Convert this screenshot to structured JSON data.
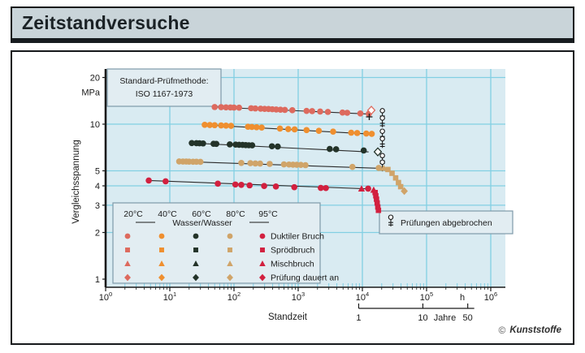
{
  "page": {
    "title": "Zeitstandversuche"
  },
  "logo": {
    "symbol": "©",
    "text": "Kunststoffe"
  },
  "chart_data": {
    "type": "scatter",
    "title": "",
    "xlabel": "Standzeit",
    "x_unit": "h",
    "ylabel": "Vergleichsspannung",
    "y_unit": "MPa",
    "x_log_range": [
      0,
      6
    ],
    "x_tick_exponents": [
      0,
      1,
      2,
      3,
      4,
      5,
      6
    ],
    "y_ticks": [
      20,
      10,
      5,
      4,
      3,
      2,
      1
    ],
    "grid_y_values": [
      20,
      10,
      5,
      4,
      3,
      2
    ],
    "grid": true,
    "plot_bg": "#d9ebf2",
    "grid_color": "#82cfe3",
    "box_bg": "#e2edf2",
    "box_border": "#7f9aa9",
    "info_box": {
      "line1": "Standard-Prüfmethode:",
      "line2": "ISO 1167-1973"
    },
    "abort_box": {
      "label": "Prüfungen abgebrochen"
    },
    "years_axis": {
      "labels": [
        "1",
        "10",
        "50"
      ],
      "years": [
        1,
        10,
        50
      ],
      "word": "Jahre",
      "hours_per_year": 8760
    },
    "legend": {
      "temps": [
        "20°C",
        "40°C",
        "60°C",
        "80°C",
        "95°C"
      ],
      "medium": "Wasser/Wasser",
      "colors": [
        "#dd6a5e",
        "#ef8f2f",
        "#233329",
        "#d0a469",
        "#d2203f"
      ],
      "rows": [
        {
          "marker": "circle",
          "label": "Duktiler Bruch"
        },
        {
          "marker": "square",
          "label": "Sprödbruch"
        },
        {
          "marker": "triangle",
          "label": "Mischbruch"
        },
        {
          "marker": "diamond",
          "label": "Prüfung dauert an"
        }
      ]
    },
    "series": [
      {
        "name": "20°C Wasser/Wasser",
        "color": "#dd6a5e",
        "trend": [
          [
            50,
            12.9
          ],
          [
            13800,
            11.6
          ]
        ],
        "markers": [
          {
            "type": "circle",
            "pts": [
              [
                50,
                12.9
              ],
              [
                63,
                12.87
              ],
              [
                75,
                12.84
              ],
              [
                88,
                12.82
              ],
              [
                100,
                12.8
              ],
              [
                120,
                12.77
              ],
              [
                185,
                12.67
              ],
              [
                215,
                12.63
              ],
              [
                260,
                12.58
              ],
              [
                300,
                12.55
              ],
              [
                345,
                12.52
              ],
              [
                395,
                12.48
              ],
              [
                455,
                12.44
              ],
              [
                530,
                12.4
              ],
              [
                620,
                12.36
              ],
              [
                810,
                12.3
              ],
              [
                1350,
                12.18
              ],
              [
                1650,
                12.13
              ],
              [
                2200,
                12.06
              ],
              [
                2900,
                12.0
              ],
              [
                4900,
                11.88
              ],
              [
                5800,
                11.84
              ],
              [
                9300,
                11.73
              ],
              [
                12600,
                11.66
              ]
            ]
          },
          {
            "type": "diamond-open",
            "pts": [
              [
                13800,
                12.3
              ]
            ]
          },
          {
            "type": "plus",
            "pts": [
              [
                12800,
                11.15
              ]
            ]
          }
        ],
        "aborts": [
          [
            20500,
            11.6
          ],
          [
            20500,
            10.4
          ]
        ]
      },
      {
        "name": "40°C Wasser/Wasser",
        "color": "#ef8f2f",
        "trend": [
          [
            35,
            9.9
          ],
          [
            14000,
            8.62
          ]
        ],
        "markers": [
          {
            "type": "circle",
            "pts": [
              [
                35,
                9.9
              ],
              [
                42,
                9.87
              ],
              [
                50,
                9.85
              ],
              [
                63,
                9.81
              ],
              [
                75,
                9.78
              ],
              [
                90,
                9.75
              ],
              [
                165,
                9.62
              ],
              [
                190,
                9.59
              ],
              [
                225,
                9.55
              ],
              [
                270,
                9.51
              ],
              [
                520,
                9.37
              ],
              [
                700,
                9.3
              ],
              [
                880,
                9.25
              ],
              [
                1350,
                9.16
              ],
              [
                2100,
                9.06
              ],
              [
                3500,
                8.95
              ],
              [
                6700,
                8.81
              ],
              [
                8300,
                8.77
              ],
              [
                11500,
                8.7
              ],
              [
                14000,
                8.66
              ]
            ]
          }
        ],
        "aborts": [
          [
            20500,
            8.55
          ],
          [
            20500,
            7.65
          ]
        ]
      },
      {
        "name": "60°C Wasser/Wasser",
        "color": "#233329",
        "trend": [
          [
            22,
            7.55
          ],
          [
            12500,
            6.62
          ]
        ],
        "markers": [
          {
            "type": "circle",
            "pts": [
              [
                22,
                7.55
              ],
              [
                26,
                7.54
              ],
              [
                29,
                7.53
              ],
              [
                33,
                7.51
              ],
              [
                48,
                7.47
              ],
              [
                53,
                7.46
              ],
              [
                86,
                7.4
              ],
              [
                106,
                7.38
              ],
              [
                120,
                7.36
              ],
              [
                136,
                7.35
              ],
              [
                152,
                7.33
              ],
              [
                170,
                7.31
              ],
              [
                192,
                7.3
              ],
              [
                390,
                7.2
              ],
              [
                480,
                7.17
              ],
              [
                3100,
                6.92
              ],
              [
                3900,
                6.89
              ],
              [
                10500,
                6.76
              ]
            ]
          },
          {
            "type": "diamond-open",
            "pts": [
              [
                17400,
                6.63
              ]
            ]
          }
        ],
        "aborts": [
          [
            20500,
            5.95
          ],
          [
            20500,
            5.4
          ]
        ]
      },
      {
        "name": "80°C Wasser/Wasser",
        "color": "#d0a469",
        "trend": [
          [
            14,
            5.75
          ],
          [
            21000,
            5.18
          ]
        ],
        "markers": [
          {
            "type": "circle",
            "pts": [
              [
                14,
                5.75
              ],
              [
                16,
                5.74
              ],
              [
                18,
                5.74
              ],
              [
                20,
                5.73
              ],
              [
                23,
                5.72
              ],
              [
                26,
                5.72
              ],
              [
                30,
                5.71
              ],
              [
                130,
                5.62
              ],
              [
                180,
                5.6
              ],
              [
                215,
                5.58
              ],
              [
                255,
                5.57
              ],
              [
                360,
                5.54
              ],
              [
                600,
                5.5
              ],
              [
                720,
                5.49
              ],
              [
                830,
                5.48
              ],
              [
                950,
                5.47
              ],
              [
                1100,
                5.46
              ],
              [
                1300,
                5.44
              ],
              [
                7000,
                5.3
              ],
              [
                18000,
                5.22
              ]
            ]
          },
          {
            "type": "triangle",
            "pts": [
              [
                21500,
                5.2
              ]
            ]
          },
          {
            "type": "square",
            "pts": [
              [
                25000,
                5.1
              ],
              [
                29000,
                4.82
              ],
              [
                33000,
                4.5
              ],
              [
                36500,
                4.2
              ],
              [
                39500,
                3.95
              ]
            ]
          },
          {
            "type": "diamond",
            "pts": [
              [
                45000,
                3.7
              ]
            ]
          }
        ],
        "aborts": []
      },
      {
        "name": "95°C Wasser/Wasser",
        "color": "#d2203f",
        "trend": [
          [
            4.7,
            4.33
          ],
          [
            13000,
            3.82
          ]
        ],
        "markers": [
          {
            "type": "circle",
            "pts": [
              [
                4.7,
                4.33
              ],
              [
                8.6,
                4.28
              ],
              [
                56,
                4.13
              ],
              [
                105,
                4.08
              ],
              [
                130,
                4.06
              ],
              [
                175,
                4.03
              ],
              [
                295,
                3.99
              ],
              [
                450,
                3.96
              ],
              [
                870,
                3.92
              ],
              [
                2250,
                3.88
              ],
              [
                2700,
                3.87
              ],
              [
                12300,
                3.84
              ]
            ]
          },
          {
            "type": "triangle",
            "pts": [
              [
                9700,
                3.83
              ],
              [
                15000,
                3.76
              ]
            ]
          },
          {
            "type": "square",
            "pts": [
              [
                15800,
                3.62
              ],
              [
                16200,
                3.45
              ],
              [
                16600,
                3.28
              ],
              [
                17000,
                3.1
              ],
              [
                17400,
                2.92
              ],
              [
                17800,
                2.78
              ]
            ]
          }
        ],
        "aborts": []
      }
    ]
  }
}
